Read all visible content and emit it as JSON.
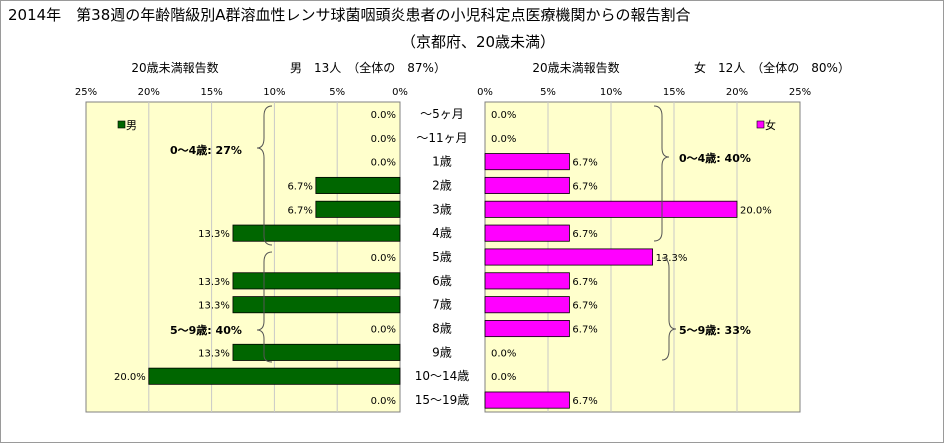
{
  "title_line1": "2014年　第38週の年齢階級別A群溶血性レンサ球菌咽頭炎患者の小児科定点医療機関からの報告割合",
  "title_line2": "（京都府、20歳未満）",
  "colors": {
    "male": "#006600",
    "female": "#ff00ff",
    "plot_bg": "#ffffcc",
    "grid": "#c8c8c8"
  },
  "chart_data": {
    "type": "bar",
    "orientation": "horizontal-butterfly",
    "categories": [
      "～5ヶ月",
      "～11ヶ月",
      "1歳",
      "2歳",
      "3歳",
      "4歳",
      "5歳",
      "6歳",
      "7歳",
      "8歳",
      "9歳",
      "10～14歳",
      "15～19歳"
    ],
    "panels": [
      {
        "side": "left",
        "header_left": "20歳未満報告数",
        "header_right": "男　13人　（全体の　87%）",
        "legend": "男",
        "series_color": "#006600",
        "ticks": [
          "25%",
          "20%",
          "15%",
          "10%",
          "5%",
          "0%"
        ],
        "xlim": [
          0,
          25
        ],
        "values": [
          0.0,
          0.0,
          0.0,
          6.7,
          6.7,
          13.3,
          0.0,
          13.3,
          13.3,
          0.0,
          13.3,
          20.0,
          0.0
        ],
        "labels": [
          "0.0%",
          "0.0%",
          "0.0%",
          "6.7%",
          "6.7%",
          "13.3%",
          "0.0%",
          "13.3%",
          "13.3%",
          "0.0%",
          "13.3%",
          "20.0%",
          "0.0%"
        ],
        "groups": [
          "0～4歳: 27%",
          "5～9歳: 40%"
        ]
      },
      {
        "side": "right",
        "header_left": "20歳未満報告数",
        "header_right": "女　12人　（全体の　80%）",
        "legend": "女",
        "series_color": "#ff00ff",
        "ticks": [
          "0%",
          "5%",
          "10%",
          "15%",
          "20%",
          "25%"
        ],
        "xlim": [
          0,
          25
        ],
        "values": [
          0.0,
          0.0,
          6.7,
          6.7,
          20.0,
          6.7,
          13.3,
          6.7,
          6.7,
          6.7,
          0.0,
          0.0,
          6.7
        ],
        "labels": [
          "0.0%",
          "0.0%",
          "6.7%",
          "6.7%",
          "20.0%",
          "6.7%",
          "13.3%",
          "6.7%",
          "6.7%",
          "6.7%",
          "0.0%",
          "0.0%",
          "6.7%"
        ],
        "groups": [
          "0～4歳: 40%",
          "5～9歳: 33%"
        ]
      }
    ]
  }
}
